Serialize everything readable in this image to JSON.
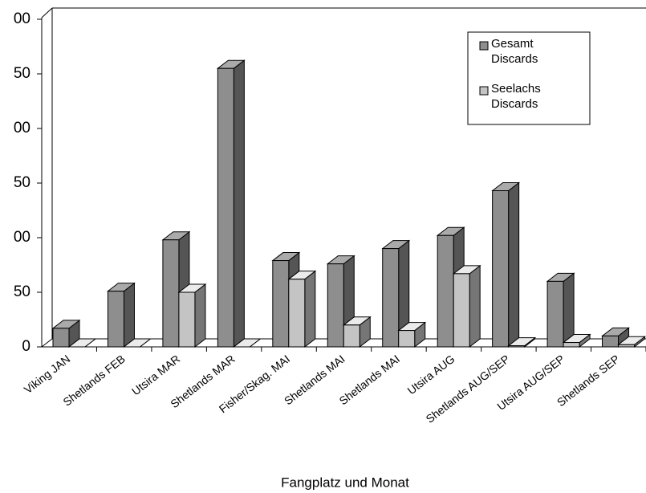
{
  "chart_data": {
    "type": "bar3d",
    "x_label": "Fangplatz und Monat",
    "categories": [
      "Viking JAN",
      "Shetlands FEB",
      "Utsira MAR",
      "Shetlands MAR",
      "Fisher/Skag. MAI",
      "Shetlands MAI",
      "Shetlands MAI",
      "Utsira AUG",
      "Shetlands AUG/SEP",
      "Utsira AUG/SEP",
      "Shetlands SEP"
    ],
    "series": [
      {
        "name": "Gesamt Discards",
        "color": "#8e8e8e",
        "values": [
          17,
          51,
          98,
          255,
          79,
          76,
          90,
          102,
          143,
          60,
          10
        ]
      },
      {
        "name": "Seelachs Discards",
        "color": "#c4c4c4",
        "values": [
          0,
          0,
          50,
          0,
          62,
          20,
          15,
          67,
          1,
          4,
          2
        ]
      }
    ],
    "ylim": [
      0,
      300
    ],
    "yticks": [
      0,
      50,
      {
        "value": 100,
        "label": "00"
      },
      {
        "value": 150,
        "label": "50"
      },
      {
        "value": 200,
        "label": "00"
      },
      {
        "value": 250,
        "label": "50"
      },
      {
        "value": 300,
        "label": "00"
      }
    ],
    "legend": "top-right"
  }
}
